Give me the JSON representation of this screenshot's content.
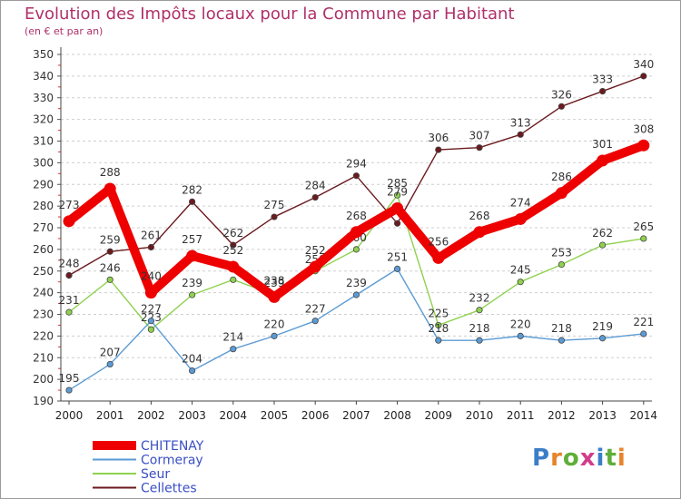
{
  "title": "Evolution des Impôts locaux pour la Commune par Habitant",
  "subtitle": "(en € et par an)",
  "logo": "Proxiti",
  "chart_data": {
    "type": "line",
    "x": [
      2000,
      2001,
      2002,
      2003,
      2004,
      2005,
      2006,
      2007,
      2008,
      2009,
      2010,
      2011,
      2012,
      2013,
      2014
    ],
    "ylim": [
      190,
      350
    ],
    "yticks": [
      190,
      200,
      210,
      220,
      230,
      240,
      250,
      260,
      270,
      280,
      290,
      300,
      310,
      320,
      330,
      340,
      350
    ],
    "grid": "horizontal-dashed",
    "legend": "bottom-left",
    "series": [
      {
        "name": "Cellettes",
        "color": "#6b1a1f",
        "values": [
          248,
          259,
          261,
          282,
          262,
          275,
          284,
          294,
          272,
          306,
          307,
          313,
          326,
          333,
          340
        ],
        "labels": [
          "248",
          "259",
          "261",
          "282",
          "262",
          "275",
          "284",
          "294",
          "",
          "306",
          "307",
          "313",
          "326",
          "333",
          "340"
        ]
      },
      {
        "name": "Seur",
        "color": "#8fd14f",
        "values": [
          231,
          246,
          223,
          239,
          246,
          239,
          250,
          260,
          285,
          225,
          232,
          245,
          253,
          262,
          265
        ],
        "labels": [
          "231",
          "246",
          "223",
          "239",
          "",
          "239",
          "250",
          "260",
          "285",
          "225",
          "232",
          "245",
          "253",
          "262",
          "265"
        ]
      },
      {
        "name": "Cormeray",
        "color": "#5b9bd5",
        "values": [
          195,
          207,
          227,
          204,
          214,
          220,
          227,
          239,
          251,
          218,
          218,
          220,
          218,
          219,
          221
        ],
        "labels": [
          "195",
          "207",
          "227",
          "204",
          "214",
          "220",
          "227",
          "239",
          "251",
          "218",
          "218",
          "220",
          "218",
          "219",
          "221"
        ]
      },
      {
        "name": "CHITENAY",
        "color": "#ee0000",
        "values": [
          273,
          288,
          240,
          257,
          252,
          238,
          252,
          268,
          279,
          256,
          268,
          274,
          286,
          301,
          308
        ],
        "labels": [
          "273",
          "288",
          "240",
          "257",
          "252",
          "238",
          "252",
          "268",
          "279",
          "256",
          "268",
          "274",
          "286",
          "301",
          "308"
        ]
      }
    ],
    "legend_order": [
      "CHITENAY",
      "Cormeray",
      "Seur",
      "Cellettes"
    ]
  }
}
